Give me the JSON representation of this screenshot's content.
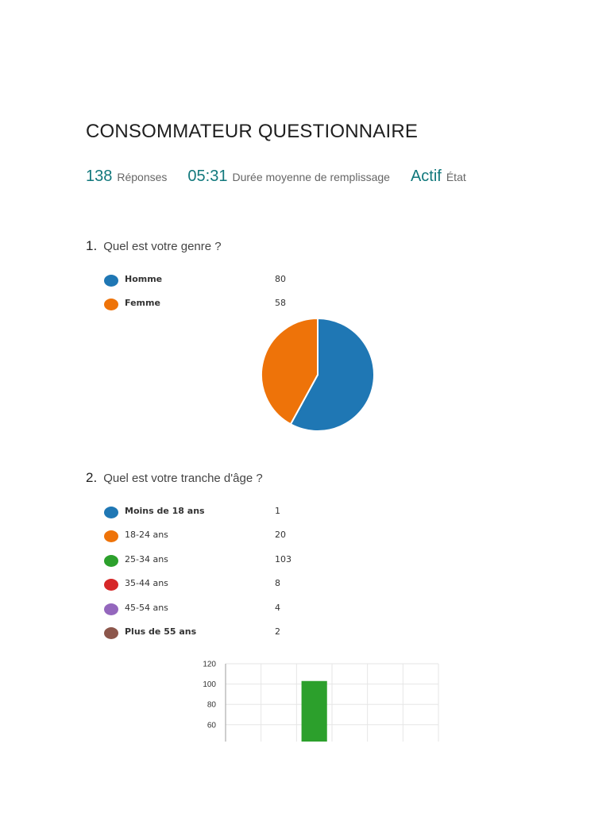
{
  "form": {
    "title": "CONSOMMATEUR QUESTIONNAIRE",
    "stats": {
      "responses_value": "138",
      "responses_label": "Réponses",
      "duration_value": "05:31",
      "duration_label": "Durée moyenne de remplissage",
      "status_value": "Actif",
      "status_label": "État"
    }
  },
  "questions": [
    {
      "number": "1.",
      "text": "Quel est votre genre ?",
      "legend": [
        {
          "label": "Homme",
          "value": "80",
          "color": "#1f77b4"
        },
        {
          "label": "Femme",
          "value": "58",
          "color": "#ee7309"
        }
      ]
    },
    {
      "number": "2.",
      "text": "Quel est votre tranche d'âge ?",
      "legend": [
        {
          "label": "Moins de 18 ans",
          "value": "1",
          "color": "#1f77b4"
        },
        {
          "label": "18-24 ans",
          "value": "20",
          "color": "#ee7309"
        },
        {
          "label": "25-34 ans",
          "value": "103",
          "color": "#2ca02c"
        },
        {
          "label": "35-44 ans",
          "value": "8",
          "color": "#d62728"
        },
        {
          "label": "45-54 ans",
          "value": "4",
          "color": "#9467bd"
        },
        {
          "label": "Plus de 55 ans",
          "value": "2",
          "color": "#8c564b"
        }
      ]
    }
  ],
  "chart_data": [
    {
      "type": "pie",
      "categories": [
        "Homme",
        "Femme"
      ],
      "values": [
        80,
        58
      ],
      "colors": [
        "#1f77b4",
        "#ee7309"
      ]
    },
    {
      "type": "bar",
      "categories": [
        "Moins de 18 ans",
        "18-24 ans",
        "25-34 ans",
        "35-44 ans",
        "45-54 ans",
        "Plus de 55 ans"
      ],
      "values": [
        1,
        20,
        103,
        8,
        4,
        2
      ],
      "colors": [
        "#1f77b4",
        "#ee7309",
        "#2ca02c",
        "#d62728",
        "#9467bd",
        "#8c564b"
      ],
      "yticks": [
        "120",
        "100",
        "80",
        "60"
      ],
      "visible_ylim": [
        55,
        120
      ],
      "grid": true
    }
  ]
}
